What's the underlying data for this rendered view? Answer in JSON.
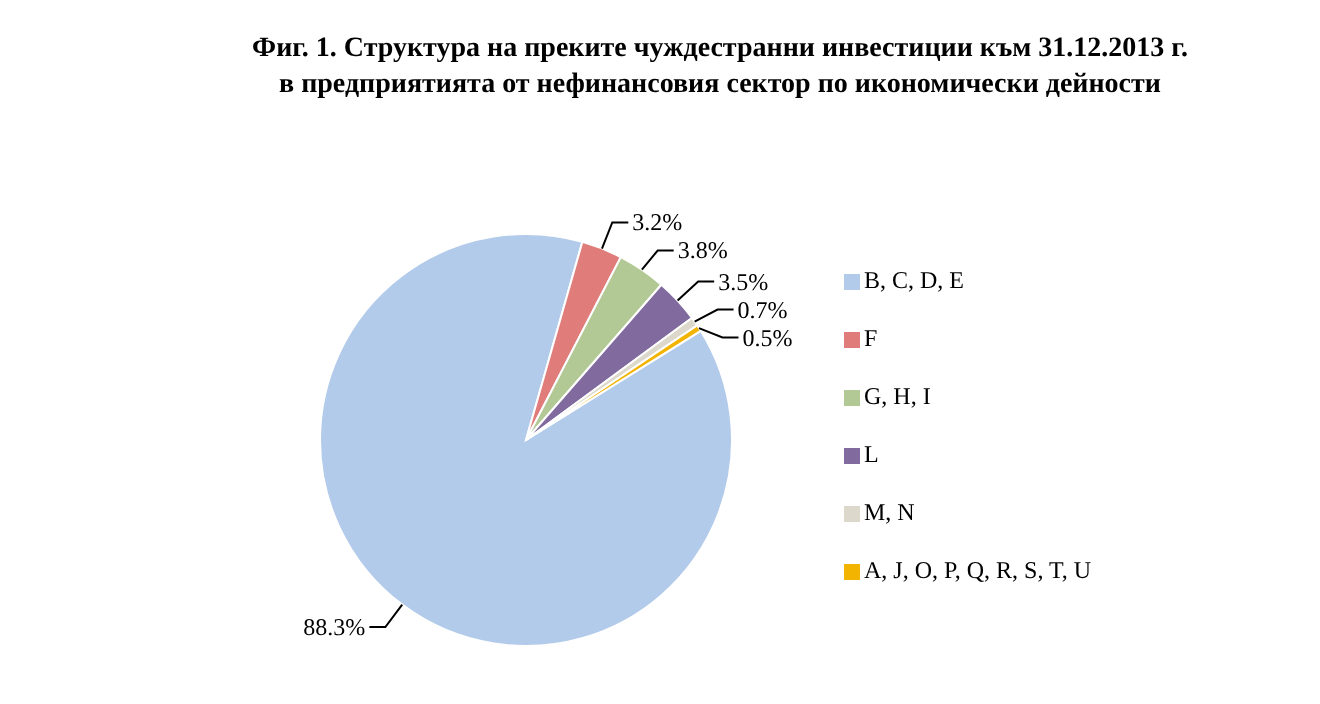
{
  "chart_data": {
    "type": "pie",
    "title": "Фиг. 1. Структура на преките чуждестранни инвестиции към 31.12.2013 г.\nв предприятията от нефинансовия сектор по икономически дейности",
    "categories": [
      "B, C, D, E",
      "F",
      "G, H, I",
      "L",
      "M, N",
      "A, J, O, P, Q, R, S, T, U"
    ],
    "values": [
      88.3,
      3.2,
      3.8,
      3.5,
      0.7,
      0.5
    ],
    "colors": [
      "#b3cbea",
      "#e07d7b",
      "#b3c995",
      "#806a9e",
      "#dcd8cc",
      "#f2b400"
    ],
    "value_labels": [
      "88.3%",
      "3.2%",
      "3.8%",
      "3.5%",
      "0.7%",
      "0.5%"
    ],
    "legend": "right"
  }
}
